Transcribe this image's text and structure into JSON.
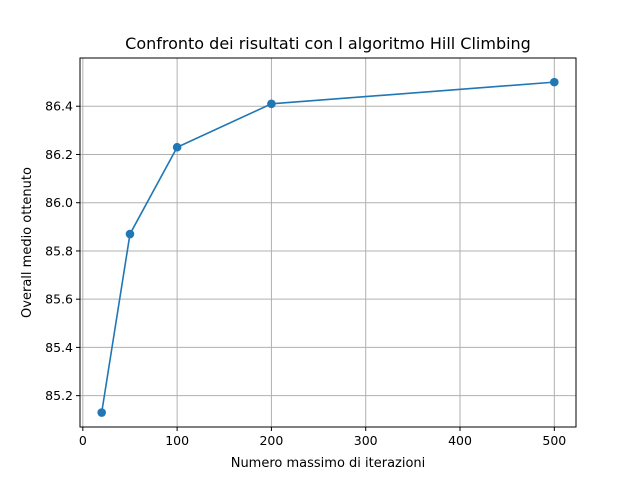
{
  "chart_data": {
    "type": "line",
    "title": "Confronto dei risultati con l algoritmo Hill Climbing",
    "xlabel": "Numero massimo di iterazioni",
    "ylabel": "Overall medio ottenuto",
    "xlim": [
      -3,
      523
    ],
    "ylim": [
      85.07,
      86.6
    ],
    "xticks": [
      0,
      100,
      200,
      300,
      400,
      500
    ],
    "xtick_labels": [
      "0",
      "100",
      "200",
      "300",
      "400",
      "500"
    ],
    "yticks": [
      85.2,
      85.4,
      85.6,
      85.8,
      86.0,
      86.2,
      86.4
    ],
    "ytick_labels": [
      "85.2",
      "85.4",
      "85.6",
      "85.8",
      "86.0",
      "86.2",
      "86.4"
    ],
    "grid": true,
    "series": [
      {
        "x": [
          20,
          50,
          100,
          200,
          500
        ],
        "y": [
          85.13,
          85.87,
          86.23,
          86.41,
          86.5
        ],
        "color": "#1f77b4",
        "marker": "circle"
      }
    ]
  }
}
